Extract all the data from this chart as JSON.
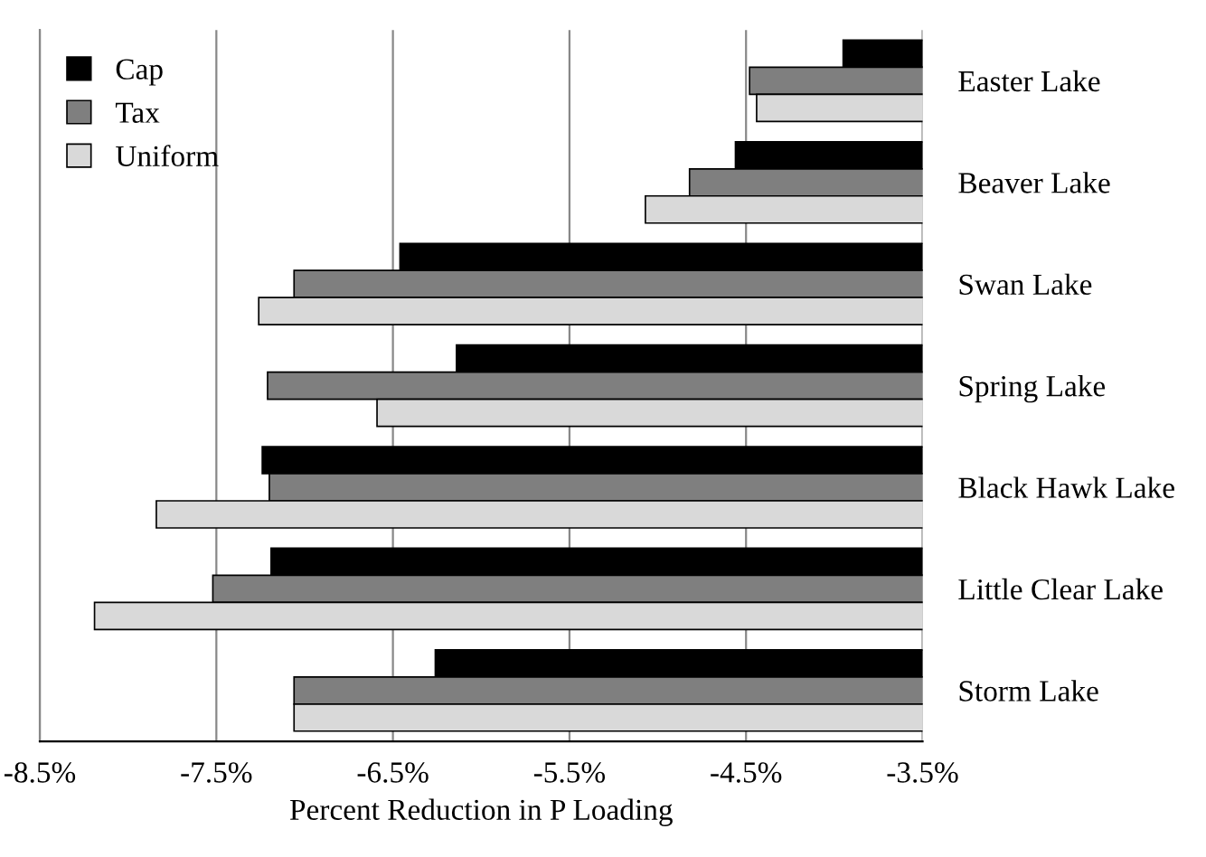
{
  "chart_data": {
    "type": "bar",
    "orientation": "horizontal",
    "xlabel": "Percent Reduction in P Loading",
    "categories": [
      "Easter Lake",
      "Beaver Lake",
      "Swan Lake",
      "Spring Lake",
      "Black Hawk Lake",
      "Little Clear Lake",
      "Storm Lake"
    ],
    "series": [
      {
        "name": "Cap",
        "color": "#000000",
        "values": [
          -3.95,
          -4.56,
          -6.46,
          -6.14,
          -7.24,
          -7.19,
          -6.26
        ]
      },
      {
        "name": "Tax",
        "color": "#7f7f7f",
        "values": [
          -4.48,
          -4.82,
          -7.06,
          -7.21,
          -7.2,
          -7.52,
          -7.06
        ]
      },
      {
        "name": "Uniform",
        "color": "#d9d9d9",
        "values": [
          -4.44,
          -5.07,
          -7.26,
          -6.59,
          -7.84,
          -8.19,
          -7.06
        ]
      }
    ],
    "xlim": [
      -8.5,
      -3.5
    ],
    "xticks": [
      {
        "value": -8.5,
        "label": "-8.5%"
      },
      {
        "value": -7.5,
        "label": "-7.5%"
      },
      {
        "value": -6.5,
        "label": "-6.5%"
      },
      {
        "value": -5.5,
        "label": "-5.5%"
      },
      {
        "value": -4.5,
        "label": "-4.5%"
      },
      {
        "value": -3.5,
        "label": "-3.5%"
      }
    ],
    "grid": "x",
    "legend": "top left"
  }
}
